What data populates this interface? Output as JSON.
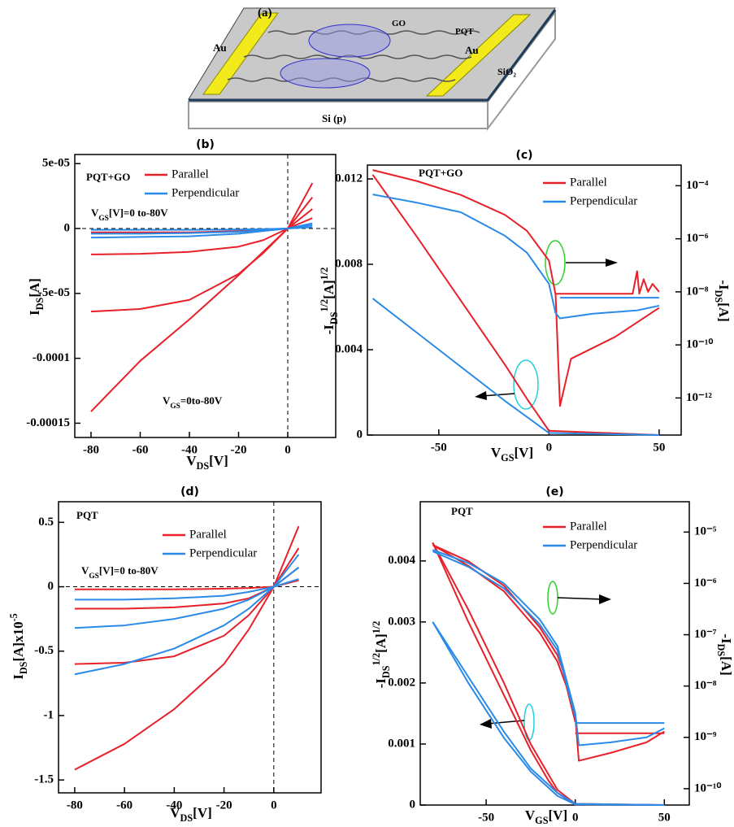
{
  "panel_a": {
    "label": "(a)",
    "go": "GO",
    "pqt": "PQT",
    "au_left": "Au",
    "au_right": "Au",
    "oxide": "SiO₂",
    "substrate": "Si (p)"
  },
  "chart_data": [
    {
      "type": "line",
      "title": "(b)",
      "xlabel": [
        "V",
        {
          "sub": "DS"
        },
        "[V]"
      ],
      "ylabel": [
        "I",
        {
          "sub": "DS"
        },
        "[A]"
      ],
      "xlim": [
        -86.6,
        19.5
      ],
      "ylim": [
        -0.000161,
        5.7e-05
      ],
      "xticks": [
        -80,
        -60,
        -40,
        -20,
        0
      ],
      "yticks": [
        {
          "value": 5e-05,
          "label": "5e-05"
        },
        0,
        {
          "value": -5e-05,
          "label": "-5e-05"
        },
        -0.0001,
        -0.00015
      ],
      "zero_lines": true,
      "annotations": [
        [
          "PQT+GO"
        ],
        [
          "V",
          {
            "sub": "GS"
          },
          "[V]=0 to-80V"
        ],
        [
          "V",
          {
            "sub": "GS"
          },
          "=0to-80V"
        ]
      ],
      "x": [
        -80,
        -60,
        -40,
        -20,
        -10,
        0,
        10
      ],
      "series": [
        {
          "name": "Parallel",
          "color": "#e8202a",
          "curves": [
            {
              "values": [
                -0.000141,
                -0.000102,
                -7e-05,
                -3.6e-05,
                -1.8e-05,
                0,
                3.5e-05
              ]
            },
            {
              "values": [
                -6.4e-05,
                -6.2e-05,
                -5.5e-05,
                -3.5e-05,
                -1.9e-05,
                0,
                2.4e-05
              ]
            },
            {
              "values": [
                -2e-05,
                -1.95e-05,
                -1.8e-05,
                -1.4e-05,
                -9e-06,
                0,
                1.5e-05
              ]
            },
            {
              "values": [
                -3e-06,
                -3e-06,
                -3e-06,
                -2e-06,
                -1e-06,
                0,
                8e-06
              ]
            }
          ]
        },
        {
          "name": "Perpendicular",
          "color": "#2a8ae8",
          "curves": [
            {
              "values": [
                -7e-06,
                -6.5e-06,
                -6e-06,
                -4e-06,
                -2e-06,
                0,
                4e-06
              ]
            },
            {
              "values": [
                -4e-06,
                -4e-06,
                -3.5e-06,
                -2.5e-06,
                -1.5e-06,
                0,
                2.5e-06
              ]
            },
            {
              "values": [
                -1e-06,
                -1e-06,
                -1e-06,
                -8e-07,
                -5e-07,
                0,
                1e-06
              ]
            }
          ]
        }
      ]
    },
    {
      "type": "line",
      "title": "(c)",
      "xlabel": [
        "V",
        {
          "sub": "GS"
        },
        "[V]"
      ],
      "ylabel": [
        "-I",
        {
          "sub": "DS"
        },
        {
          "sup": "1/2"
        },
        "[A]",
        {
          "sup": "1/2"
        }
      ],
      "y2label": [
        "-I",
        {
          "sub": "DS"
        },
        "[A]"
      ],
      "xlim": [
        -82.4,
        60
      ],
      "ylim": [
        0,
        0.01265
      ],
      "y2lim": [
        4e-14,
        0.0006
      ],
      "y2scale": "log",
      "xticks": [
        -50,
        0,
        50
      ],
      "yticks": [
        0,
        0.004,
        0.008,
        0.012
      ],
      "y2ticks": [
        {
          "value": 1e-12,
          "label": "10⁻¹²"
        },
        {
          "value": 1e-10,
          "label": "10⁻¹⁰"
        },
        {
          "value": 1e-08,
          "label": "10⁻⁸"
        },
        {
          "value": 1e-06,
          "label": "10⁻⁶"
        },
        {
          "value": 0.0001,
          "label": "10⁻⁴"
        }
      ],
      "zero_lines": false,
      "annotations": [
        [
          "PQT+GO"
        ]
      ],
      "series": [
        {
          "name": "Parallel",
          "color": "#e8202a",
          "curves": [
            {
              "x": [
                -80,
                -60,
                -40,
                -20,
                -10,
                0,
                50
              ],
              "values": [
                0.0122,
                0.0093,
                0.0063,
                0.0033,
                0.0017,
                0.0002,
                0
              ]
            },
            {
              "axis": "y2",
              "x": [
                -80,
                -60,
                -40,
                -20,
                -10,
                0,
                3,
                5,
                10,
                30,
                50
              ],
              "values": [
                0.00039,
                0.00015,
                4.5e-05,
                8e-06,
                2e-06,
                1.5e-07,
                8e-09,
                5e-13,
                3e-11,
                2e-10,
                2.5e-09
              ]
            },
            {
              "axis": "y2",
              "x": [
                3,
                20,
                38,
                40,
                41,
                43,
                45,
                47,
                50
              ],
              "values": [
                8.5e-09,
                8.5e-09,
                8.5e-09,
                6e-08,
                8.5e-09,
                3e-08,
                1e-08,
                2e-08,
                1e-08
              ]
            }
          ]
        },
        {
          "name": "Perpendicular",
          "color": "#2a8ae8",
          "curves": [
            {
              "x": [
                -80,
                -60,
                -40,
                -20,
                0,
                50
              ],
              "values": [
                0.0064,
                0.0048,
                0.0032,
                0.0016,
                0.0001,
                0
              ]
            },
            {
              "axis": "y2",
              "x": [
                -80,
                -60,
                -40,
                -20,
                -10,
                0,
                3,
                5,
                20,
                40,
                50
              ],
              "values": [
                4.7e-05,
                2.3e-05,
                1e-05,
                1.3e-06,
                3e-07,
                2e-08,
                1.6e-09,
                1e-09,
                1.5e-09,
                2e-09,
                3e-09
              ]
            },
            {
              "axis": "y2",
              "x": [
                5,
                20,
                40,
                50
              ],
              "values": [
                6e-09,
                6e-09,
                6e-09,
                6e-09
              ]
            }
          ]
        }
      ]
    },
    {
      "type": "line",
      "title": "(d)",
      "xlabel": [
        "V",
        {
          "sub": "DS"
        },
        "[V]"
      ],
      "ylabel": [
        "I",
        {
          "sub": "DS"
        },
        "[A]x10",
        {
          "sup": "-5"
        }
      ],
      "xlim": [
        -86.5,
        19
      ],
      "ylim": [
        -1.6,
        0.66
      ],
      "xticks": [
        -80,
        -60,
        -40,
        -20,
        0
      ],
      "yticks": [
        0.5,
        0,
        -0.5,
        -1,
        -1.5
      ],
      "zero_lines": true,
      "annotations": [
        [
          "PQT"
        ],
        [
          "V",
          {
            "sub": "GS"
          },
          "[V]=0 to-80V"
        ]
      ],
      "x": [
        -80,
        -60,
        -40,
        -20,
        -10,
        0,
        10
      ],
      "series": [
        {
          "name": "Parallel",
          "color": "#e8202a",
          "curves": [
            {
              "values": [
                -1.42,
                -1.22,
                -0.95,
                -0.6,
                -0.33,
                0,
                0.47
              ]
            },
            {
              "values": [
                -0.6,
                -0.59,
                -0.54,
                -0.38,
                -0.22,
                0,
                0.3
              ]
            },
            {
              "values": [
                -0.17,
                -0.17,
                -0.16,
                -0.13,
                -0.09,
                0,
                0.15
              ]
            },
            {
              "values": [
                -0.02,
                -0.02,
                -0.02,
                -0.015,
                -0.01,
                0,
                0.05
              ]
            }
          ]
        },
        {
          "name": "Perpendicular",
          "color": "#2a8ae8",
          "curves": [
            {
              "values": [
                -0.68,
                -0.6,
                -0.48,
                -0.3,
                -0.17,
                0,
                0.25
              ]
            },
            {
              "values": [
                -0.32,
                -0.3,
                -0.25,
                -0.17,
                -0.1,
                0,
                0.15
              ]
            },
            {
              "values": [
                -0.1,
                -0.1,
                -0.09,
                -0.07,
                -0.04,
                0,
                0.06
              ]
            }
          ]
        }
      ]
    },
    {
      "type": "line",
      "title": "(e)",
      "xlabel": [
        "V",
        {
          "sub": "GS"
        },
        "[V]"
      ],
      "ylabel": [
        "-I",
        {
          "sub": "DS"
        },
        {
          "sup": "1/2"
        },
        "[A]",
        {
          "sup": "1/2"
        }
      ],
      "y2label": [
        "-I",
        {
          "sub": "DS"
        },
        "[A]"
      ],
      "xlim": [
        -87,
        64
      ],
      "ylim": [
        0,
        0.00497
      ],
      "y2lim": [
        4.8e-11,
        3.9e-05
      ],
      "y2scale": "log",
      "xticks": [
        -50,
        0,
        50
      ],
      "yticks": [
        0,
        0.001,
        0.002,
        0.003,
        0.004
      ],
      "y2ticks": [
        {
          "value": 1e-10,
          "label": "10⁻¹⁰"
        },
        {
          "value": 1e-09,
          "label": "10⁻⁹"
        },
        {
          "value": 1e-08,
          "label": "10⁻⁸"
        },
        {
          "value": 1e-07,
          "label": "10⁻⁷"
        },
        {
          "value": 1e-06,
          "label": "10⁻⁶"
        },
        {
          "value": 1e-05,
          "label": "10⁻⁵"
        }
      ],
      "zero_lines": false,
      "annotations": [
        [
          "PQT"
        ]
      ],
      "series": [
        {
          "name": "Parallel",
          "color": "#e8202a",
          "curves": [
            {
              "x": [
                -80,
                -60,
                -40,
                -25,
                -15,
                -10,
                0,
                50
              ],
              "values": [
                0.0043,
                0.0032,
                0.002,
                0.001,
                0.0005,
                0.00025,
                2e-05,
                0
              ]
            },
            {
              "x": [
                -80,
                -60,
                -40,
                -25,
                -15,
                -10,
                0,
                50
              ],
              "values": [
                0.0043,
                0.003,
                0.0018,
                0.0009,
                0.0004,
                0.0002,
                1e-05,
                0
              ]
            },
            {
              "axis": "y2",
              "x": [
                -80,
                -60,
                -40,
                -20,
                -10,
                -5,
                0,
                2,
                20,
                40,
                50
              ],
              "values": [
                5.6e-06,
                2.7e-06,
                9e-07,
                1.4e-07,
                4e-08,
                1.3e-08,
                2.6e-09,
                3.5e-10,
                5e-10,
                8e-10,
                1.3e-09
              ]
            },
            {
              "axis": "y2",
              "x": [
                -80,
                -60,
                -40,
                -20,
                -10,
                -5,
                0
              ],
              "values": [
                5.6e-06,
                2.2e-06,
                7e-07,
                1.1e-07,
                3e-08,
                1e-08,
                2e-09
              ]
            },
            {
              "axis": "y2",
              "x": [
                0,
                20,
                40,
                50
              ],
              "values": [
                1.2e-09,
                1.2e-09,
                1.2e-09,
                1.2e-09
              ]
            }
          ]
        },
        {
          "name": "Perpendicular",
          "color": "#2a8ae8",
          "curves": [
            {
              "x": [
                -80,
                -60,
                -40,
                -25,
                -10,
                0,
                50
              ],
              "values": [
                0.003,
                0.0021,
                0.0012,
                0.0006,
                0.0002,
                2e-05,
                0
              ]
            },
            {
              "x": [
                -80,
                -60,
                -40,
                -25,
                -10,
                0,
                50
              ],
              "values": [
                0.003,
                0.002,
                0.0011,
                0.00055,
                0.00015,
                1e-05,
                0
              ]
            },
            {
              "axis": "y2",
              "x": [
                -80,
                -60,
                -40,
                -20,
                -10,
                0,
                2,
                20,
                40,
                50
              ],
              "values": [
                4.5e-06,
                2.5e-06,
                1e-06,
                2e-07,
                6e-08,
                3e-09,
                7e-10,
                8e-10,
                1e-09,
                1.5e-09
              ]
            },
            {
              "axis": "y2",
              "x": [
                -80,
                -60,
                -40,
                -20,
                -10,
                0
              ],
              "values": [
                4.2e-06,
                2.1e-06,
                8e-07,
                1.6e-07,
                5e-08,
                2.5e-09
              ]
            },
            {
              "axis": "y2",
              "x": [
                0,
                20,
                40,
                50
              ],
              "values": [
                1.9e-09,
                1.9e-09,
                1.9e-09,
                1.9e-09
              ]
            }
          ]
        }
      ]
    }
  ]
}
